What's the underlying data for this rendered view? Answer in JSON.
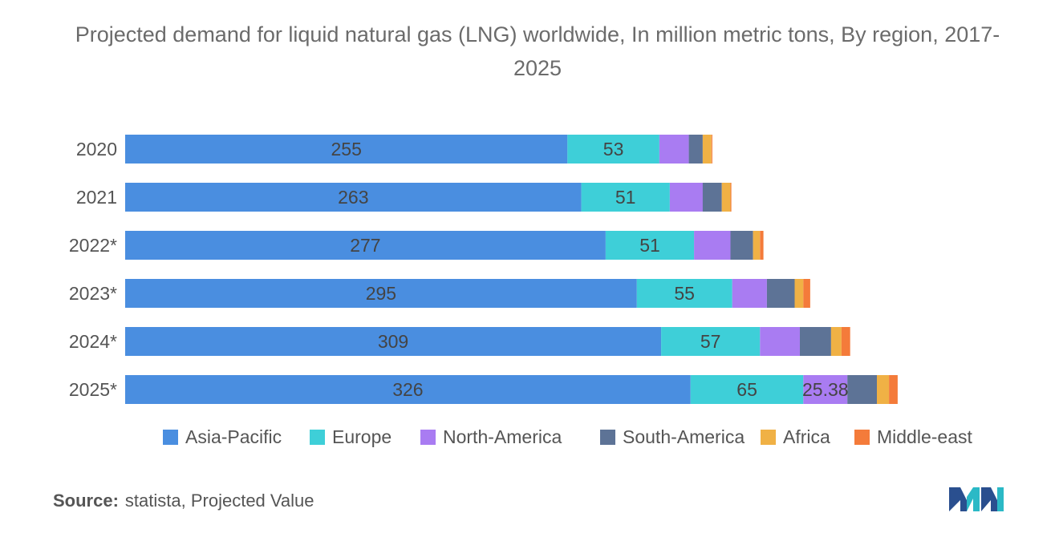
{
  "chart_data": {
    "type": "bar",
    "orientation": "horizontal",
    "stacked": true,
    "title": "Projected demand for liquid natural gas (LNG) worldwide, In million metric tons, By region, 2017-2025",
    "categories": [
      "2020",
      "2021",
      "2022*",
      "2023*",
      "2024*",
      "2025*"
    ],
    "series": [
      {
        "name": "Asia-Pacific",
        "color": "#4a8ee0",
        "values": [
          255,
          263,
          277,
          295,
          309,
          326
        ],
        "labels": [
          "255",
          "263",
          "277",
          "295",
          "309",
          "326"
        ]
      },
      {
        "name": "Europe",
        "color": "#3ecfd8",
        "values": [
          53,
          51,
          51,
          55,
          57,
          65
        ],
        "labels": [
          "53",
          "51",
          "51",
          "55",
          "57",
          "65"
        ]
      },
      {
        "name": "North-America",
        "color": "#a97cf2",
        "values": [
          17,
          19,
          21,
          20,
          23,
          25.38
        ],
        "labels": [
          "",
          "",
          "",
          "",
          "",
          "25.38"
        ]
      },
      {
        "name": "South-America",
        "color": "#5d7396",
        "values": [
          8,
          11,
          13,
          16,
          18,
          17
        ],
        "labels": [
          "",
          "",
          "",
          "",
          "",
          ""
        ]
      },
      {
        "name": "Africa",
        "color": "#f0b145",
        "values": [
          5,
          5,
          4,
          5,
          6,
          7
        ],
        "labels": [
          "",
          "",
          "",
          "",
          "",
          ""
        ]
      },
      {
        "name": "Middle-east",
        "color": "#f47b3a",
        "values": [
          0.5,
          0.5,
          2,
          4,
          5,
          5
        ],
        "labels": [
          "",
          "",
          "",
          "",
          "",
          ""
        ]
      }
    ],
    "legend_position": "bottom",
    "grid": false
  },
  "footer": {
    "source_label": "Source:",
    "source_text": "statista, Projected Value"
  }
}
